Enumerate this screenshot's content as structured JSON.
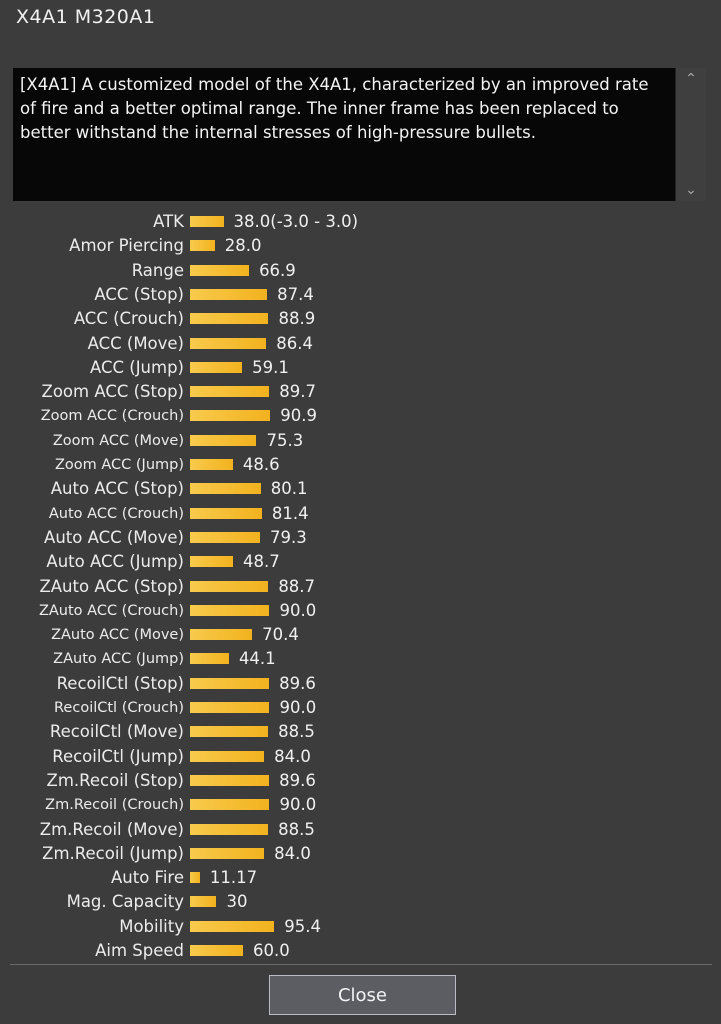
{
  "window": {
    "title": "X4A1 M320A1"
  },
  "description": {
    "text": "[X4A1] A customized model of the X4A1, characterized by an improved rate of fire and a better optimal range. The inner frame has been replaced to better withstand the internal stresses of high-pressure bullets."
  },
  "stats": [
    {
      "label": "ATK",
      "value": "38.0(-3.0 - 3.0)",
      "level": 38.0
    },
    {
      "label": "Amor Piercing",
      "value": "28.0",
      "level": 28.0
    },
    {
      "label": "Range",
      "value": "66.9",
      "level": 66.9
    },
    {
      "label": "ACC (Stop)",
      "value": "87.4",
      "level": 87.4
    },
    {
      "label": "ACC (Crouch)",
      "value": "88.9",
      "level": 88.9
    },
    {
      "label": "ACC (Move)",
      "value": "86.4",
      "level": 86.4
    },
    {
      "label": "ACC (Jump)",
      "value": "59.1",
      "level": 59.1
    },
    {
      "label": "Zoom ACC (Stop)",
      "value": "89.7",
      "level": 89.7
    },
    {
      "label": "Zoom ACC (Crouch)",
      "value": "90.9",
      "level": 90.9,
      "small": true
    },
    {
      "label": "Zoom ACC (Move)",
      "value": "75.3",
      "level": 75.3,
      "small": true
    },
    {
      "label": "Zoom ACC (Jump)",
      "value": "48.6",
      "level": 48.6,
      "small": true
    },
    {
      "label": "Auto ACC (Stop)",
      "value": "80.1",
      "level": 80.1
    },
    {
      "label": "Auto ACC (Crouch)",
      "value": "81.4",
      "level": 81.4,
      "small": true
    },
    {
      "label": "Auto ACC (Move)",
      "value": "79.3",
      "level": 79.3
    },
    {
      "label": "Auto ACC (Jump)",
      "value": "48.7",
      "level": 48.7
    },
    {
      "label": "ZAuto ACC (Stop)",
      "value": "88.7",
      "level": 88.7
    },
    {
      "label": "ZAuto ACC (Crouch)",
      "value": "90.0",
      "level": 90.0,
      "small": true
    },
    {
      "label": "ZAuto ACC (Move)",
      "value": "70.4",
      "level": 70.4,
      "small": true
    },
    {
      "label": "ZAuto ACC (Jump)",
      "value": "44.1",
      "level": 44.1,
      "small": true
    },
    {
      "label": "RecoilCtl (Stop)",
      "value": "89.6",
      "level": 89.6
    },
    {
      "label": "RecoilCtl (Crouch)",
      "value": "90.0",
      "level": 90.0,
      "small": true
    },
    {
      "label": "RecoilCtl (Move)",
      "value": "88.5",
      "level": 88.5
    },
    {
      "label": "RecoilCtl (Jump)",
      "value": "84.0",
      "level": 84.0
    },
    {
      "label": "Zm.Recoil (Stop)",
      "value": "89.6",
      "level": 89.6
    },
    {
      "label": "Zm.Recoil (Crouch)",
      "value": "90.0",
      "level": 90.0,
      "small": true
    },
    {
      "label": "Zm.Recoil (Move)",
      "value": "88.5",
      "level": 88.5
    },
    {
      "label": "Zm.Recoil (Jump)",
      "value": "84.0",
      "level": 84.0
    },
    {
      "label": "Auto Fire",
      "value": "11.17",
      "level": 11.17
    },
    {
      "label": "Mag. Capacity",
      "value": "30",
      "level": 30
    },
    {
      "label": "Mobility",
      "value": "95.4",
      "level": 95.4
    },
    {
      "label": "Aim Speed",
      "value": "60.0",
      "level": 60.0
    }
  ],
  "footer": {
    "close_label": "Close"
  },
  "colors": {
    "bar": "#f2b21e",
    "background": "#3c3c3c",
    "description_bg": "#070707"
  }
}
